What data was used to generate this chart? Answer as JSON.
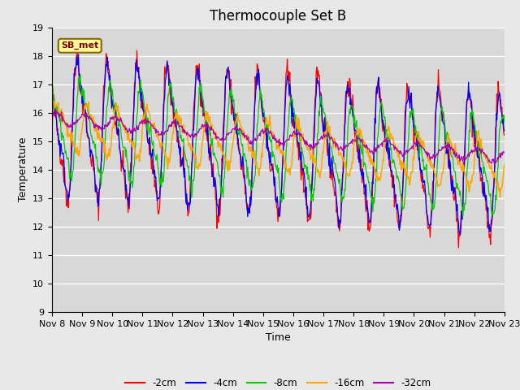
{
  "title": "Thermocouple Set B",
  "xlabel": "Time",
  "ylabel": "Temperature",
  "ylim": [
    9.0,
    19.0
  ],
  "yticks": [
    9.0,
    10.0,
    11.0,
    12.0,
    13.0,
    14.0,
    15.0,
    16.0,
    17.0,
    18.0,
    19.0
  ],
  "xtick_labels": [
    "Nov 8",
    "Nov 9",
    "Nov 10",
    "Nov 11",
    "Nov 12",
    "Nov 13",
    "Nov 14",
    "Nov 15",
    "Nov 16",
    "Nov 17",
    "Nov 18",
    "Nov 19",
    "Nov 20",
    "Nov 21",
    "Nov 22",
    "Nov 23"
  ],
  "annotation": "SB_met",
  "line_colors": {
    "-2cm": "#FF0000",
    "-4cm": "#0000FF",
    "-8cm": "#00CC00",
    "-16cm": "#FFA500",
    "-32cm": "#AA00AA"
  },
  "legend_labels": [
    "-2cm",
    "-4cm",
    "-8cm",
    "-16cm",
    "-32cm"
  ],
  "fig_facecolor": "#E8E8E8",
  "ax_facecolor": "#D8D8D8",
  "grid_color": "#FFFFFF",
  "title_fontsize": 12,
  "axis_label_fontsize": 9,
  "tick_fontsize": 8
}
